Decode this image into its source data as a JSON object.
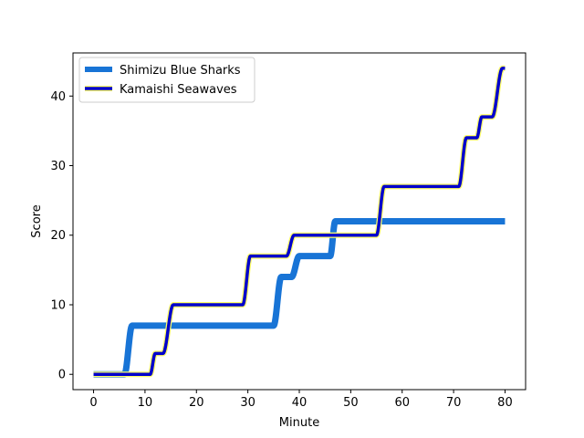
{
  "chart_data": {
    "type": "line",
    "title": "",
    "xlabel": "Minute",
    "ylabel": "Score",
    "xlim": [
      -4,
      84
    ],
    "ylim": [
      -2.2,
      46.2
    ],
    "xticks": [
      0,
      10,
      20,
      30,
      40,
      50,
      60,
      70,
      80
    ],
    "yticks": [
      0,
      10,
      20,
      30,
      40
    ],
    "grid": false,
    "legend_position": "upper-left",
    "series": [
      {
        "name": "Shimizu Blue Sharks",
        "color": "#1874d6",
        "style": "thick",
        "x": [
          0,
          6,
          7.5,
          35,
          36.5,
          38.5,
          40,
          46,
          47,
          80
        ],
        "y": [
          0,
          0,
          7,
          7,
          14,
          14,
          17,
          17,
          22,
          22
        ]
      },
      {
        "name": "Kamaishi Seawaves",
        "color": "#0000cc",
        "edge_color": "#ffff66",
        "style": "outlined",
        "x": [
          0,
          11,
          12,
          13.5,
          15.5,
          29,
          30.5,
          37.5,
          39,
          55,
          56.5,
          71,
          72.5,
          74.5,
          75.5,
          77.5,
          79.5,
          80
        ],
        "y": [
          0,
          0,
          3,
          3,
          10,
          10,
          17,
          17,
          20,
          20,
          27,
          27,
          34,
          34,
          37,
          37,
          44,
          44
        ]
      }
    ]
  }
}
